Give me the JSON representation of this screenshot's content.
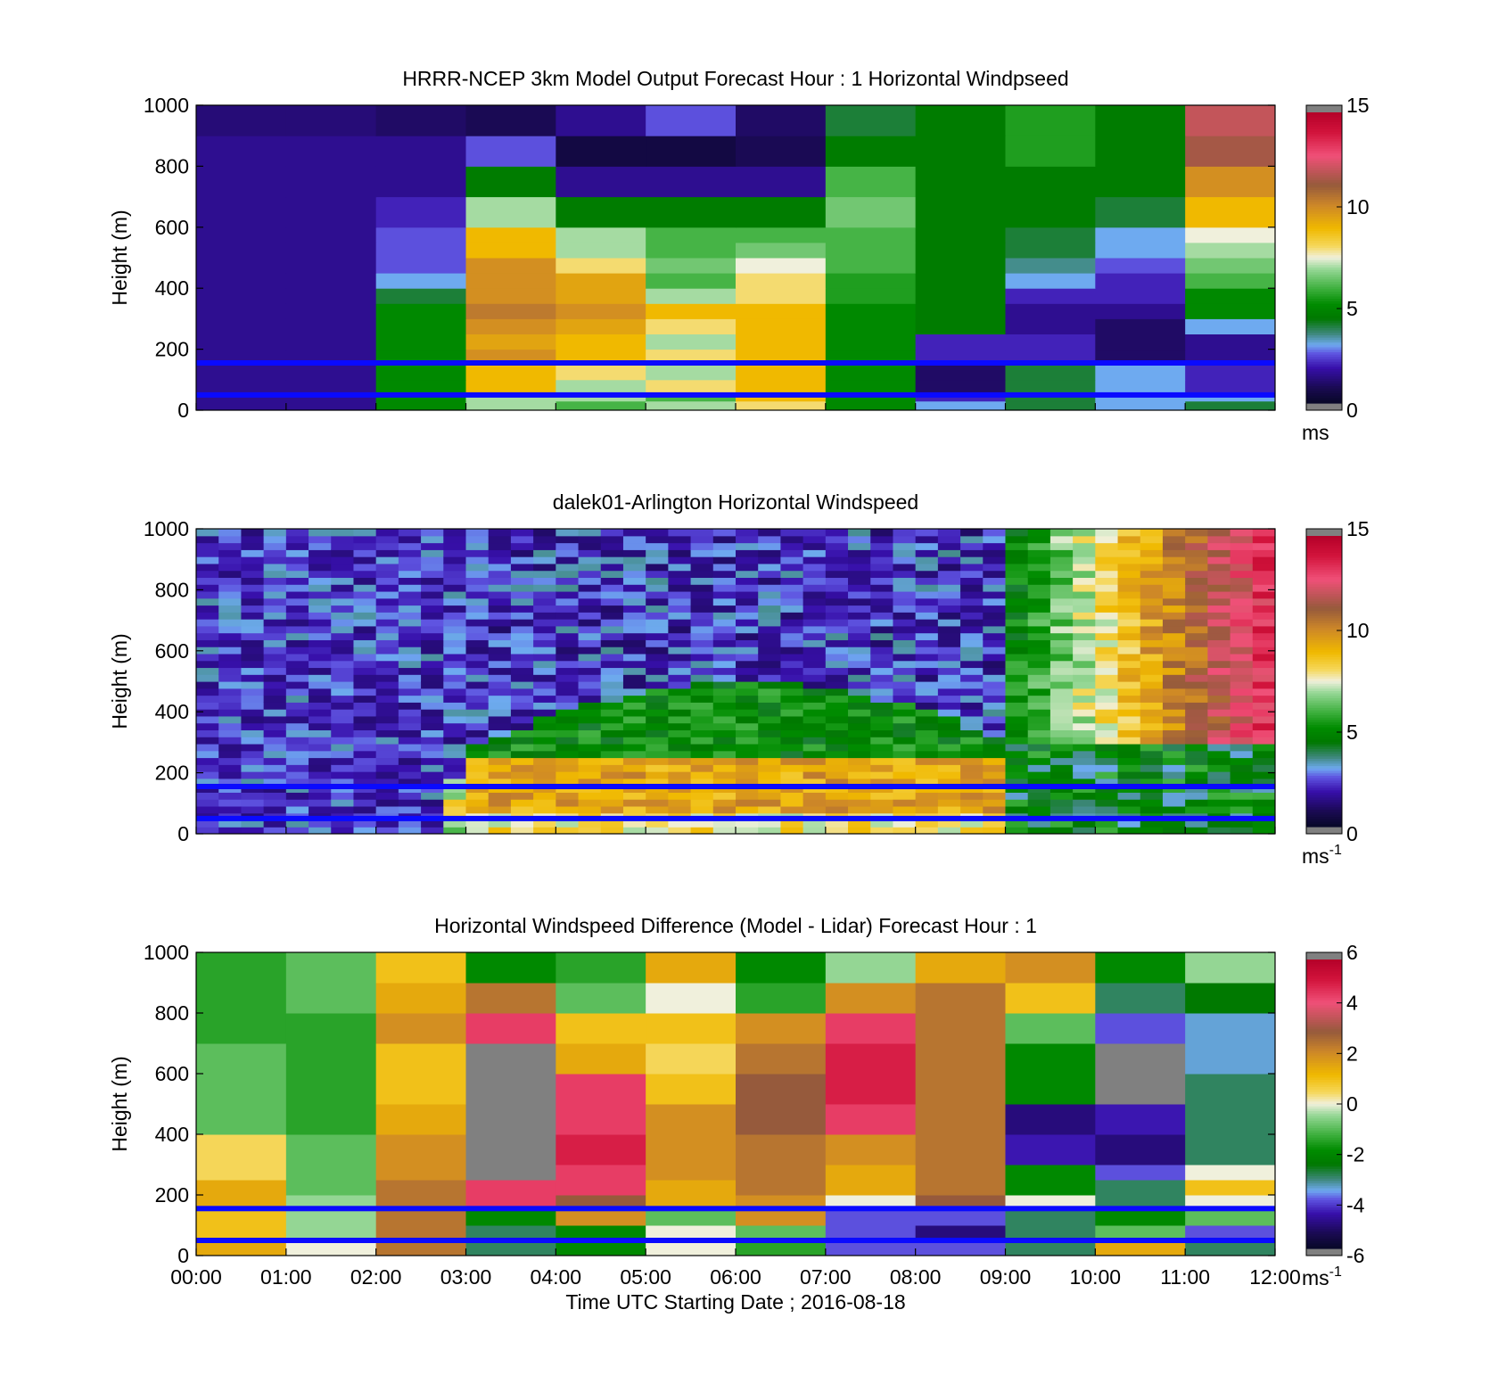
{
  "chart_data": [
    {
      "type": "heatmap",
      "title": "HRRR-NCEP 3km Model Output   Forecast Hour : 1 Horizontal Windpseed",
      "ylabel": "Height (m)",
      "ylim": [
        0,
        1000
      ],
      "yticks": [
        "0",
        "200",
        "400",
        "600",
        "800",
        "1000"
      ],
      "xlim_hours": [
        0,
        12
      ],
      "x_ticks_labeled": false,
      "colorbar": {
        "range": [
          0,
          15
        ],
        "ticks": [
          "0",
          "5",
          "10",
          "15"
        ],
        "unit": "ms",
        "unit_sup": ""
      },
      "time_bins_hours": [
        0,
        1,
        2,
        3,
        4,
        5,
        6,
        7,
        8,
        9,
        10,
        11
      ],
      "height_bins_m": [
        0,
        30,
        50,
        100,
        150,
        200,
        250,
        300,
        350,
        400,
        450,
        500,
        550,
        600,
        700,
        800,
        900,
        1000
      ],
      "values": [
        [
          1.5,
          1.5,
          5,
          7,
          6,
          7,
          8,
          5,
          3,
          4,
          3,
          4
        ],
        [
          1.5,
          1.5,
          5,
          7,
          7,
          6,
          9,
          5,
          2,
          4,
          3,
          3
        ],
        [
          1.5,
          1.5,
          5,
          9,
          7,
          8,
          9,
          5,
          1,
          4,
          3,
          2
        ],
        [
          1.5,
          1.5,
          5,
          9,
          8,
          7,
          9,
          5,
          1,
          4,
          3,
          2
        ],
        [
          1.5,
          1.5,
          5,
          10,
          9,
          8,
          9,
          5,
          2,
          2,
          1,
          1.5
        ],
        [
          1.5,
          1.5,
          5,
          9.5,
          9,
          7,
          9,
          5,
          2,
          2,
          1,
          1.5
        ],
        [
          1.5,
          1.5,
          5,
          10,
          9.5,
          8,
          9,
          5,
          4.5,
          1.5,
          1,
          3
        ],
        [
          1.5,
          1.5,
          5,
          10.5,
          10,
          9,
          9,
          5,
          4.5,
          1.5,
          1.5,
          5
        ],
        [
          1.5,
          1.5,
          4,
          10,
          9.5,
          7,
          8,
          5.5,
          4.5,
          2,
          2,
          5
        ],
        [
          1.5,
          1.5,
          3,
          10,
          9.5,
          6,
          8,
          5.5,
          4.5,
          3,
          2,
          6
        ],
        [
          1.5,
          1.5,
          2.5,
          10,
          8,
          6.5,
          7.5,
          6,
          4.5,
          3.5,
          2.5,
          6.5
        ],
        [
          1.5,
          1.5,
          2.5,
          9,
          7,
          6,
          6.5,
          6,
          4.5,
          4,
          3,
          7
        ],
        [
          1.5,
          1.5,
          2.5,
          9,
          7,
          6,
          6,
          6,
          4.5,
          4,
          3,
          7.5
        ],
        [
          1.5,
          1.5,
          2,
          7,
          4.5,
          4.5,
          4.5,
          6.5,
          4.5,
          4.5,
          4,
          9
        ],
        [
          1.5,
          1.5,
          1.5,
          4.5,
          1.5,
          1.5,
          1.5,
          6,
          4.5,
          4.5,
          4.5,
          10
        ],
        [
          1.5,
          1.5,
          1.5,
          2.5,
          0.5,
          0.5,
          0.8,
          4.5,
          4.5,
          5.5,
          4.5,
          11.5
        ],
        [
          1.2,
          1.2,
          1,
          0.8,
          1.5,
          2.5,
          1,
          4,
          4.5,
          5.5,
          4.5,
          12
        ]
      ]
    },
    {
      "type": "heatmap",
      "title": "dalek01-Arlington  Horizontal Windspeed",
      "ylabel": "Height (m)",
      "ylim": [
        0,
        1000
      ],
      "yticks": [
        "0",
        "200",
        "400",
        "600",
        "800",
        "1000"
      ],
      "xlim_hours": [
        0,
        12
      ],
      "x_ticks_labeled": false,
      "colorbar": {
        "range": [
          0,
          15
        ],
        "ticks": [
          "0",
          "5",
          "10",
          "15"
        ],
        "unit": "ms",
        "unit_sup": "-1"
      },
      "time_bins_hours": [
        0,
        0.25,
        0.5,
        0.75,
        1,
        1.25,
        1.5,
        1.75,
        2,
        2.25,
        2.5,
        2.75,
        3,
        3.25,
        3.5,
        3.75,
        4,
        4.25,
        4.5,
        4.75,
        5,
        5.25,
        5.5,
        5.75,
        6,
        6.25,
        6.5,
        6.75,
        7,
        7.25,
        7.5,
        7.75,
        8,
        8.25,
        8.5,
        8.75,
        9,
        9.25,
        9.5,
        9.75,
        10,
        10.25,
        10.5,
        10.75,
        11,
        11.25,
        11.5,
        11.75
      ],
      "profile_model": "low-level jet below ~250 m after 03:00; deep mixed layer growing after 09:00",
      "threshold_hours": [
        3,
        9
      ]
    },
    {
      "type": "heatmap",
      "title": "Horizontal Windspeed Difference (Model - Lidar) Forecast Hour : 1",
      "xlabel": "Time UTC  Starting Date ; 2016-08-18",
      "ylabel": "Height (m)",
      "ylim": [
        0,
        1000
      ],
      "yticks": [
        "0",
        "200",
        "400",
        "600",
        "800",
        "1000"
      ],
      "xticks": [
        "00:00",
        "01:00",
        "02:00",
        "03:00",
        "04:00",
        "05:00",
        "06:00",
        "07:00",
        "08:00",
        "09:00",
        "10:00",
        "11:00",
        "12:00"
      ],
      "colorbar": {
        "range": [
          -6,
          6
        ],
        "ticks": [
          "-6",
          "-4",
          "-2",
          "0",
          "2",
          "4",
          "6"
        ],
        "unit": "ms",
        "unit_sup": "-1"
      },
      "time_bins_hours": [
        0,
        1,
        2,
        3,
        4,
        5,
        6,
        7,
        8,
        9,
        10,
        11
      ],
      "height_bins_m": [
        0,
        50,
        100,
        150,
        200,
        250,
        300,
        400,
        500,
        600,
        700,
        800,
        900,
        1000
      ],
      "values": [
        [
          1.5,
          0,
          2.5,
          -3,
          -2,
          0,
          -1.5,
          -4,
          -4,
          -3,
          1.5,
          -3
        ],
        [
          1,
          -0.5,
          2.5,
          -3,
          -2,
          0,
          -1,
          -4,
          -5,
          -3,
          -1,
          -4
        ],
        [
          1,
          -0.5,
          2.5,
          -2,
          2,
          -1,
          2,
          -4,
          -4,
          -3,
          -2,
          -1
        ],
        [
          1.5,
          -0.5,
          2.5,
          4.5,
          3,
          1.5,
          2,
          0,
          3,
          0,
          -3,
          0
        ],
        [
          1.5,
          -1,
          2.5,
          4.5,
          4.5,
          1.5,
          2.5,
          1.5,
          2.5,
          -2,
          -3,
          1
        ],
        [
          0.5,
          -1,
          2,
          null,
          4.5,
          2,
          2.5,
          1.5,
          2.5,
          -2,
          -4,
          0
        ],
        [
          0.5,
          -1,
          2,
          null,
          5,
          2,
          2.5,
          2,
          2.5,
          -4.5,
          -5,
          -3
        ],
        [
          -1,
          -1.5,
          1.5,
          null,
          4.5,
          2,
          3,
          4.5,
          2.5,
          -5,
          -4.5,
          -3
        ],
        [
          -1,
          -1.5,
          1,
          null,
          4.5,
          1,
          3,
          5,
          2.5,
          -2,
          null,
          -3
        ],
        [
          -1,
          -1.5,
          1,
          null,
          1.5,
          0.5,
          2.5,
          5,
          2.5,
          -2,
          null,
          -3.5
        ],
        [
          -1.5,
          -1.5,
          2,
          4.5,
          1,
          1,
          2,
          4.5,
          2.5,
          -1,
          -4,
          -3.5
        ],
        [
          -1.5,
          -1,
          1.5,
          2.5,
          -1,
          0,
          -1.5,
          2,
          2.5,
          1,
          -3,
          -2.5
        ],
        [
          -1.5,
          -1,
          1,
          -2,
          -1.5,
          1.5,
          -2,
          -0.5,
          1.5,
          2,
          -2,
          -0.5
        ]
      ]
    }
  ]
}
